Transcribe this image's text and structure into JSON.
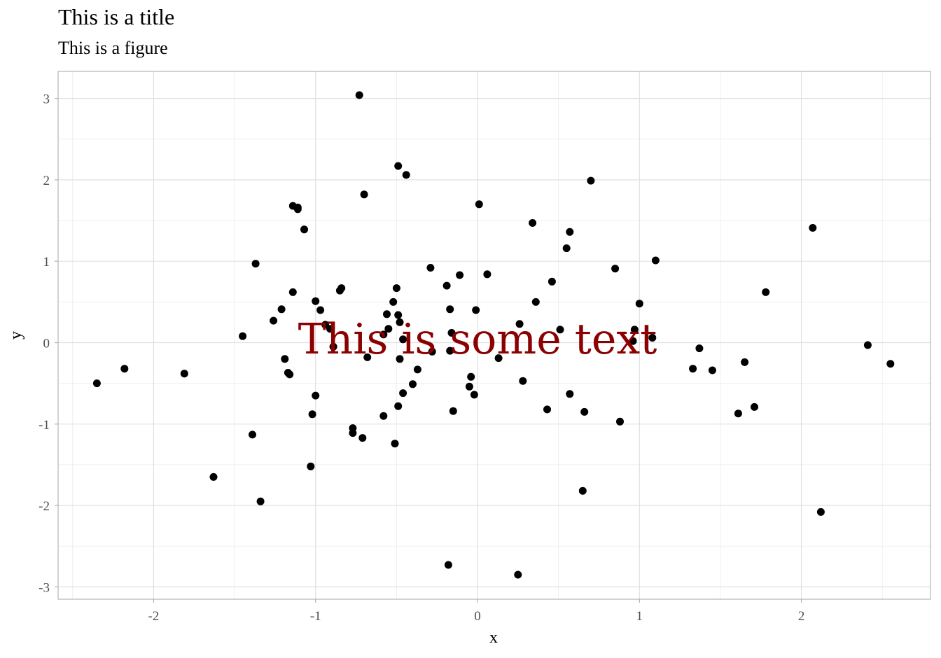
{
  "chart_data": {
    "type": "scatter",
    "title": "This is a title",
    "subtitle": "This is a figure",
    "xlabel": "x",
    "ylabel": "y",
    "xlim": [
      -2.6,
      2.8
    ],
    "ylim": [
      -3.15,
      3.33
    ],
    "x_ticks": [
      -2,
      -1,
      0,
      1,
      2
    ],
    "y_ticks": [
      -3,
      -2,
      -1,
      0,
      1,
      2,
      3
    ],
    "x_tick_labels": [
      "-2",
      "-1",
      "0",
      "1",
      "2"
    ],
    "y_tick_labels": [
      "-3",
      "-2",
      "-1",
      "0",
      "1",
      "2",
      "3"
    ],
    "grid": true,
    "point_color": "#000000",
    "annotation": {
      "text": "This is some text",
      "x": 0.0,
      "y": 0.0,
      "color": "#8b0000"
    },
    "points": [
      {
        "x": -0.73,
        "y": 3.04
      },
      {
        "x": -0.49,
        "y": 2.17
      },
      {
        "x": -0.44,
        "y": 2.06
      },
      {
        "x": 0.7,
        "y": 1.99
      },
      {
        "x": -0.7,
        "y": 1.82
      },
      {
        "x": 0.01,
        "y": 1.7
      },
      {
        "x": -1.14,
        "y": 1.68
      },
      {
        "x": -1.11,
        "y": 1.66
      },
      {
        "x": -1.11,
        "y": 1.64
      },
      {
        "x": 0.34,
        "y": 1.47
      },
      {
        "x": 2.07,
        "y": 1.41
      },
      {
        "x": -1.07,
        "y": 1.39
      },
      {
        "x": 0.57,
        "y": 1.36
      },
      {
        "x": 0.55,
        "y": 1.16
      },
      {
        "x": 1.1,
        "y": 1.01
      },
      {
        "x": -1.37,
        "y": 0.97
      },
      {
        "x": -0.29,
        "y": 0.92
      },
      {
        "x": 0.85,
        "y": 0.91
      },
      {
        "x": 0.06,
        "y": 0.84
      },
      {
        "x": -0.11,
        "y": 0.83
      },
      {
        "x": 0.46,
        "y": 0.75
      },
      {
        "x": -0.19,
        "y": 0.7
      },
      {
        "x": -0.84,
        "y": 0.67
      },
      {
        "x": -0.5,
        "y": 0.67
      },
      {
        "x": -0.85,
        "y": 0.64
      },
      {
        "x": 1.78,
        "y": 0.62
      },
      {
        "x": -1.14,
        "y": 0.62
      },
      {
        "x": -1.0,
        "y": 0.51
      },
      {
        "x": -0.52,
        "y": 0.5
      },
      {
        "x": 0.36,
        "y": 0.5
      },
      {
        "x": 1.0,
        "y": 0.48
      },
      {
        "x": -1.21,
        "y": 0.41
      },
      {
        "x": -0.17,
        "y": 0.41
      },
      {
        "x": -0.01,
        "y": 0.4
      },
      {
        "x": -0.97,
        "y": 0.4
      },
      {
        "x": -0.56,
        "y": 0.35
      },
      {
        "x": -0.49,
        "y": 0.34
      },
      {
        "x": -1.26,
        "y": 0.27
      },
      {
        "x": -0.48,
        "y": 0.25
      },
      {
        "x": 0.26,
        "y": 0.23
      },
      {
        "x": -0.94,
        "y": 0.22
      },
      {
        "x": -0.55,
        "y": 0.17
      },
      {
        "x": -0.91,
        "y": 0.17
      },
      {
        "x": 0.51,
        "y": 0.16
      },
      {
        "x": 0.97,
        "y": 0.16
      },
      {
        "x": -0.16,
        "y": 0.12
      },
      {
        "x": -0.58,
        "y": 0.1
      },
      {
        "x": -1.45,
        "y": 0.08
      },
      {
        "x": 1.08,
        "y": 0.06
      },
      {
        "x": -0.46,
        "y": 0.04
      },
      {
        "x": 0.96,
        "y": 0.02
      },
      {
        "x": 2.41,
        "y": -0.03
      },
      {
        "x": -0.89,
        "y": -0.05
      },
      {
        "x": 1.37,
        "y": -0.07
      },
      {
        "x": -0.28,
        "y": -0.11
      },
      {
        "x": -0.17,
        "y": -0.1
      },
      {
        "x": -0.68,
        "y": -0.18
      },
      {
        "x": -1.19,
        "y": -0.2
      },
      {
        "x": -0.48,
        "y": -0.2
      },
      {
        "x": 0.13,
        "y": -0.19
      },
      {
        "x": 1.65,
        "y": -0.24
      },
      {
        "x": 2.55,
        "y": -0.26
      },
      {
        "x": -2.18,
        "y": -0.32
      },
      {
        "x": 1.33,
        "y": -0.32
      },
      {
        "x": -0.37,
        "y": -0.33
      },
      {
        "x": 1.45,
        "y": -0.34
      },
      {
        "x": -1.17,
        "y": -0.37
      },
      {
        "x": -1.81,
        "y": -0.38
      },
      {
        "x": -1.16,
        "y": -0.39
      },
      {
        "x": -0.04,
        "y": -0.42
      },
      {
        "x": 0.28,
        "y": -0.47
      },
      {
        "x": -2.35,
        "y": -0.5
      },
      {
        "x": -0.4,
        "y": -0.51
      },
      {
        "x": -0.05,
        "y": -0.54
      },
      {
        "x": -0.46,
        "y": -0.62
      },
      {
        "x": 0.57,
        "y": -0.63
      },
      {
        "x": -0.02,
        "y": -0.64
      },
      {
        "x": -1.0,
        "y": -0.65
      },
      {
        "x": -0.49,
        "y": -0.78
      },
      {
        "x": 1.71,
        "y": -0.79
      },
      {
        "x": 0.43,
        "y": -0.82
      },
      {
        "x": -0.15,
        "y": -0.84
      },
      {
        "x": 0.66,
        "y": -0.85
      },
      {
        "x": 1.61,
        "y": -0.87
      },
      {
        "x": -1.02,
        "y": -0.88
      },
      {
        "x": -0.58,
        "y": -0.9
      },
      {
        "x": 0.88,
        "y": -0.97
      },
      {
        "x": -0.77,
        "y": -1.05
      },
      {
        "x": -0.77,
        "y": -1.11
      },
      {
        "x": -1.39,
        "y": -1.13
      },
      {
        "x": -0.71,
        "y": -1.17
      },
      {
        "x": -0.51,
        "y": -1.24
      },
      {
        "x": -1.03,
        "y": -1.52
      },
      {
        "x": -1.63,
        "y": -1.65
      },
      {
        "x": 0.65,
        "y": -1.82
      },
      {
        "x": -1.34,
        "y": -1.95
      },
      {
        "x": 2.12,
        "y": -2.08
      },
      {
        "x": -0.18,
        "y": -2.73
      },
      {
        "x": 0.25,
        "y": -2.85
      }
    ]
  }
}
